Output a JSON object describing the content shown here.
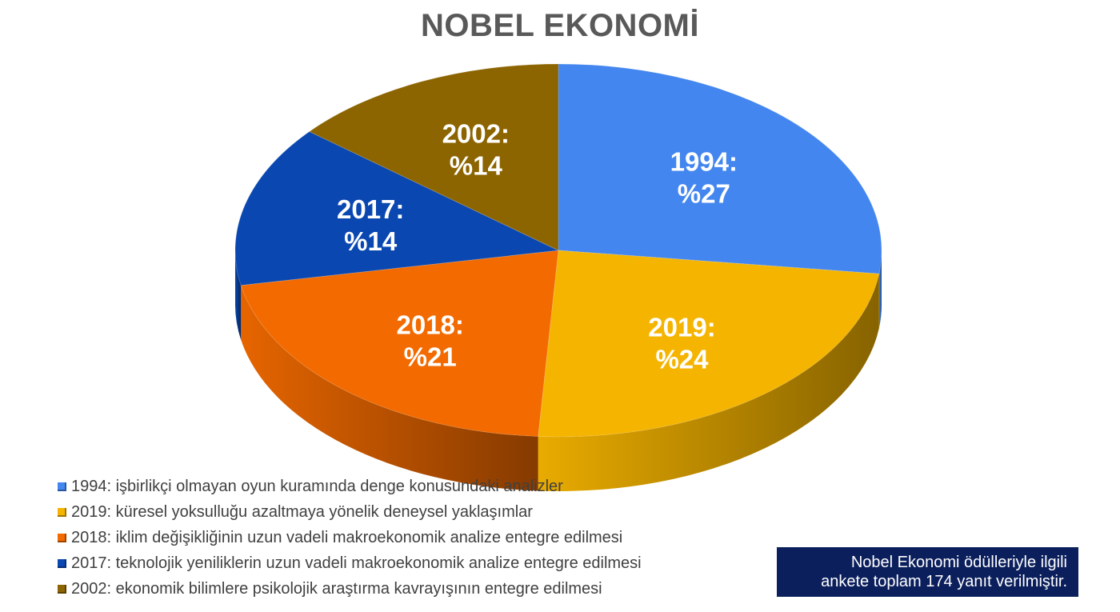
{
  "chart_data": {
    "type": "pie",
    "title": "NOBEL EKONOMİ",
    "slices": [
      {
        "label": "1994",
        "value": 27,
        "display": [
          "1994:",
          "%27"
        ],
        "color": "#4386ef",
        "legend": "1994: işbirlikçi olmayan oyun kuramında denge konusundaki analizler"
      },
      {
        "label": "2019",
        "value": 24,
        "display": [
          "2019:",
          "%24"
        ],
        "color": "#f5b400",
        "legend": "2019: küresel yoksulluğu azaltmaya yönelik deneysel yaklaşımlar"
      },
      {
        "label": "2018",
        "value": 21,
        "display": [
          "2018:",
          "%21"
        ],
        "color": "#f26a00",
        "legend": "2018: iklim değişikliğinin uzun vadeli makroekonomik analize entegre edilmesi"
      },
      {
        "label": "2017",
        "value": 14,
        "display": [
          "2017:",
          "%14"
        ],
        "color": "#0a47b0",
        "legend": "2017: teknolojik yeniliklerin uzun vadeli makroekonomik analize entegre edilmesi"
      },
      {
        "label": "2002",
        "value": 14,
        "display": [
          "2002:",
          "%14"
        ],
        "color": "#8c6400",
        "legend": "2002: ekonomik bilimlere psikolojik araştırma kavrayışının entegre edilmesi"
      }
    ],
    "legend_position": "bottom-left"
  },
  "note": {
    "line1": "Nobel Ekonomi ödülleriyle ilgili",
    "line2": "ankete toplam 174 yanıt verilmiştir."
  }
}
